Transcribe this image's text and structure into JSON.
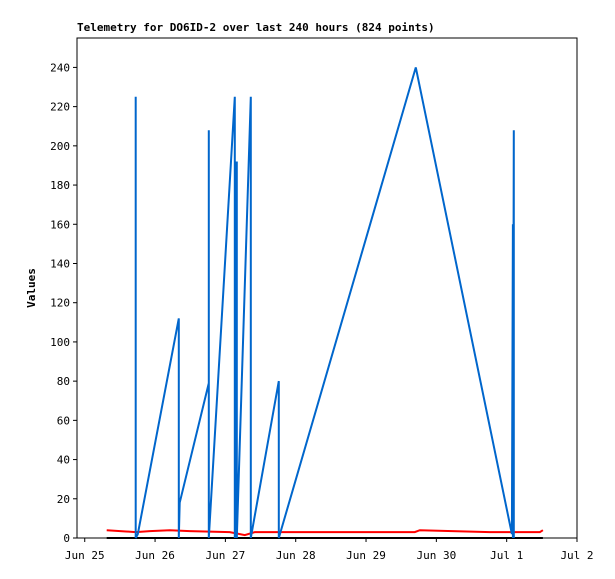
{
  "chart_data": {
    "type": "line",
    "title": "Telemetry for DO6ID-2 over last 240 hours (824 points)",
    "y_label": "Values",
    "xlim": [
      -0.11,
      7
    ],
    "xticks": [
      {
        "value": 0,
        "label": "Jun 25"
      },
      {
        "value": 1,
        "label": "Jun 26"
      },
      {
        "value": 2,
        "label": "Jun 27"
      },
      {
        "value": 3,
        "label": "Jun 28"
      },
      {
        "value": 4,
        "label": "Jun 29"
      },
      {
        "value": 5,
        "label": "Jun 30"
      },
      {
        "value": 6,
        "label": "Jul 1"
      },
      {
        "value": 7,
        "label": "Jul 2"
      }
    ],
    "ylim": [
      0,
      255
    ],
    "yticks": [
      0,
      20,
      40,
      60,
      80,
      100,
      120,
      140,
      160,
      180,
      200,
      220,
      240
    ],
    "series": [
      {
        "color": "#000000",
        "x": [
          0.313,
          6.515
        ],
        "values": [
          0,
          0
        ]
      },
      {
        "color": "#ff0000",
        "x": [
          0.313,
          0.725,
          0.925,
          1.209,
          1.494,
          2.063,
          2.276,
          2.418,
          3.058,
          4.694,
          4.765,
          5.761,
          6.472,
          6.515
        ],
        "values": [
          4,
          3,
          3.5,
          4,
          3.5,
          3,
          1.5,
          3,
          3,
          3,
          4,
          3,
          3,
          4
        ]
      },
      {
        "color": "#0066cc",
        "x": [
          0.725,
          0.725,
          0.754,
          1.337,
          1.337,
          1.351,
          1.764,
          1.764,
          1.764,
          2.134,
          2.134,
          2.162,
          2.162,
          2.361,
          2.361,
          2.76,
          2.76,
          4.708,
          6.074,
          6.088,
          6.088,
          6.102,
          6.102
        ],
        "values": [
          225,
          0,
          2,
          112,
          0,
          18,
          79,
          208,
          0,
          225,
          0,
          192,
          0,
          225,
          0,
          80,
          0,
          240,
          2,
          160,
          0,
          208,
          0
        ]
      }
    ]
  }
}
